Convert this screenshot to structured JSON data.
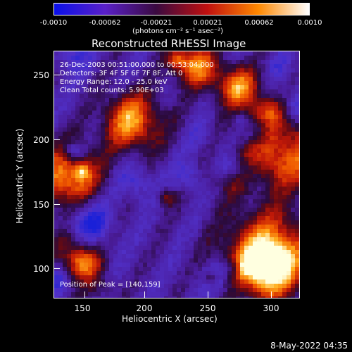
{
  "colorbar": {
    "tick_labels": [
      "-0.0010",
      "-0.00062",
      "-0.00021",
      "0.00021",
      "0.00062",
      "0.0010"
    ],
    "units": "(photons cm⁻² s⁻¹ asec⁻²)",
    "colors": [
      "#0a10e8",
      "#5a20c8",
      "#3a0a40",
      "#c01010",
      "#ff8800",
      "#ffffff"
    ]
  },
  "title": "Reconstructed RHESSI Image",
  "annotations": {
    "line1": "26-Dec-2003 00:51:00.000 to 00:53:04.000",
    "line2": "Detectors: 3F 4F 5F 6F 7F 8F, Att 0",
    "line3": "Energy Range: 12.0 - 25.0 keV",
    "line4": "Clean     Total counts: 5.90E+03",
    "peak": "Position of Peak = [140,159]"
  },
  "axes": {
    "xlabel": "Heliocentric X (arcsec)",
    "ylabel": "Heliocentric Y (arcsec)",
    "xticks": [
      "150",
      "200",
      "250",
      "300"
    ],
    "yticks": [
      "250",
      "200",
      "150",
      "100"
    ],
    "xlim": [
      128,
      322
    ],
    "ylim": [
      76,
      272
    ]
  },
  "timestamp": "8-May-2022 04:35"
}
